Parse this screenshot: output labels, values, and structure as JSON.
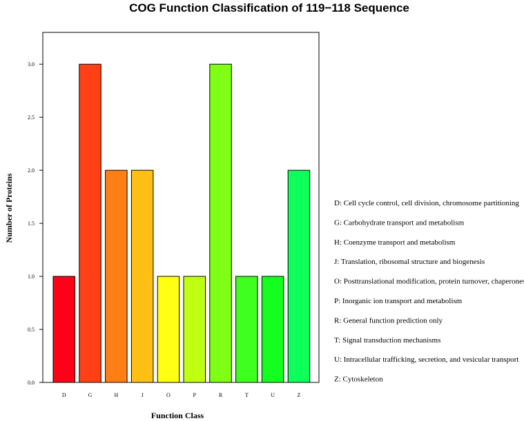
{
  "chart_data": {
    "type": "bar",
    "title": "COG Function Classification of 119−118 Sequence",
    "xlabel": "Function Class",
    "ylabel": "Number of Proteins",
    "categories": [
      "D",
      "G",
      "H",
      "J",
      "O",
      "P",
      "R",
      "T",
      "U",
      "Z"
    ],
    "values": [
      1,
      3,
      2,
      2,
      1,
      1,
      3,
      1,
      1,
      2
    ],
    "colors": [
      "#FF0019",
      "#FF4014",
      "#FF7F14",
      "#FFBF14",
      "#FFFF14",
      "#BFFF14",
      "#7FFF14",
      "#3FFF1E",
      "#14FF20",
      "#0FFF5A"
    ],
    "ylim": [
      0,
      3.3
    ],
    "yticks": [
      "0.0",
      "0.5",
      "1.0",
      "1.5",
      "2.0",
      "2.5",
      "3.0"
    ],
    "grid": false,
    "legend_position": "right",
    "legend": [
      "D: Cell cycle control, cell division, chromosome partitioning",
      "G: Carbohydrate transport and metabolism",
      "H: Coenzyme transport and metabolism",
      "J: Translation, ribosomal structure and biogenesis",
      "O: Posttranslational modification, protein turnover, chaperones",
      "P: Inorganic ion transport and metabolism",
      "R: General function prediction only",
      "T: Signal transduction mechanisms",
      "U: Intracellular trafficking, secretion, and vesicular transport",
      "Z: Cytoskeleton"
    ]
  }
}
